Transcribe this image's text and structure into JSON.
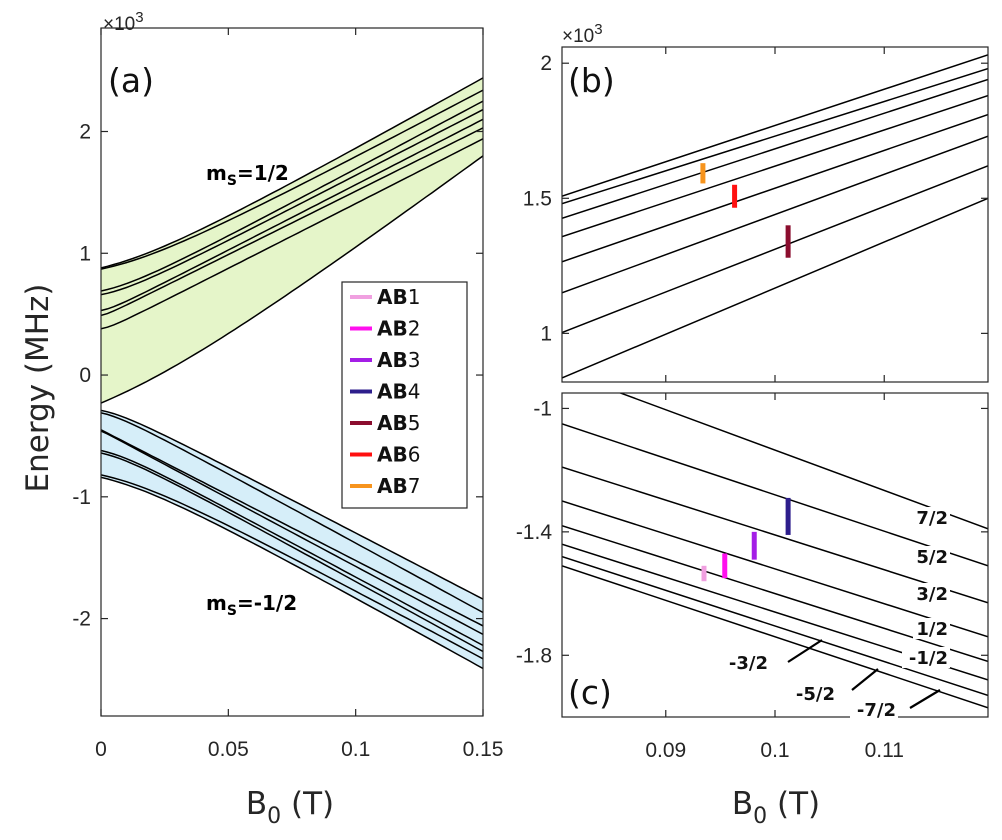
{
  "colors": {
    "upper_fill": "#e5f5c9",
    "lower_fill": "#d6eef9",
    "ms_up": "#7dc142",
    "ms_down": "#29aae1",
    "line": "#000000"
  },
  "ylabel": "Energy (MHz)",
  "xlabel_main": "B",
  "xlabel_sub": "0",
  "xlabel_unit": " (T)",
  "chart_data": [
    {
      "panel": "(a)",
      "type": "line",
      "exponent": "×10",
      "exponent_power": "3",
      "x_ticks": [
        "0",
        "0.05",
        "0.1",
        "0.15"
      ],
      "x_tick_values": [
        0,
        0.05,
        0.1,
        0.15
      ],
      "y_ticks": [
        "-2",
        "-1",
        "0",
        "1",
        "2"
      ],
      "y_tick_values": [
        -2000,
        -1000,
        0,
        1000,
        2000
      ],
      "xlim": [
        0,
        0.15
      ],
      "ylim": [
        -2800,
        2850
      ],
      "x": [
        0,
        0.15
      ],
      "series": [
        {
          "branch": "upper",
          "values": [
            880,
            2440
          ]
        },
        {
          "branch": "upper",
          "values": [
            870,
            2340
          ]
        },
        {
          "branch": "upper",
          "values": [
            690,
            2250
          ]
        },
        {
          "branch": "upper",
          "values": [
            660,
            2180
          ]
        },
        {
          "branch": "upper",
          "values": [
            530,
            2100
          ]
        },
        {
          "branch": "upper",
          "values": [
            490,
            2030
          ]
        },
        {
          "branch": "upper",
          "values": [
            380,
            1940
          ]
        },
        {
          "branch": "upper",
          "values": [
            -230,
            1800
          ]
        },
        {
          "branch": "lower",
          "values": [
            -290,
            -1840
          ]
        },
        {
          "branch": "lower",
          "values": [
            -310,
            -1950
          ]
        },
        {
          "branch": "lower",
          "values": [
            -450,
            -2060
          ]
        },
        {
          "branch": "lower",
          "values": [
            -460,
            -2130
          ]
        },
        {
          "branch": "lower",
          "values": [
            -620,
            -2220
          ]
        },
        {
          "branch": "lower",
          "values": [
            -640,
            -2270
          ]
        },
        {
          "branch": "lower",
          "values": [
            -820,
            -2330
          ]
        },
        {
          "branch": "lower",
          "values": [
            -840,
            -2410
          ]
        }
      ],
      "annotations": {
        "ms_up": {
          "m": "m",
          "sub": "S",
          "rest": "=1/2"
        },
        "ms_down": {
          "m": "m",
          "sub": "S",
          "rest": "=-1/2"
        }
      },
      "legend": [
        {
          "bold": "AB",
          "num": "1",
          "color": "#f0a0e0"
        },
        {
          "bold": "AB",
          "num": "2",
          "color": "#ff10ee"
        },
        {
          "bold": "AB",
          "num": "3",
          "color": "#a41ee6"
        },
        {
          "bold": "AB",
          "num": "4",
          "color": "#2d1e8c"
        },
        {
          "bold": "AB",
          "num": "5",
          "color": "#8b0d2e"
        },
        {
          "bold": "AB",
          "num": "6",
          "color": "#ff1010"
        },
        {
          "bold": "AB",
          "num": "7",
          "color": "#f7941d"
        }
      ]
    },
    {
      "panel": "(b)",
      "type": "line",
      "exponent": "×10",
      "exponent_power": "3",
      "y_ticks": [
        "1",
        "1.5",
        "2"
      ],
      "y_tick_values": [
        1000,
        1500,
        2000
      ],
      "x_tick_values": [
        0.09,
        0.1,
        0.11
      ],
      "xlim": [
        0.0805,
        0.1195
      ],
      "ylim": [
        820,
        2060
      ],
      "x": [
        0.0805,
        0.1195
      ],
      "series": [
        {
          "values": [
            1508,
            2031
          ]
        },
        {
          "values": [
            1480,
            1980
          ]
        },
        {
          "values": [
            1426,
            1940
          ]
        },
        {
          "values": [
            1358,
            1880
          ]
        },
        {
          "values": [
            1265,
            1810
          ]
        },
        {
          "values": [
            1150,
            1730
          ]
        },
        {
          "values": [
            1003,
            1620
          ]
        },
        {
          "values": [
            835,
            1500
          ]
        }
      ],
      "transitions": [
        {
          "name": "AB7",
          "x": 0.0934,
          "y_range": [
            1555,
            1630
          ],
          "color": "#f7941d"
        },
        {
          "name": "AB6",
          "x": 0.0963,
          "y_range": [
            1465,
            1550
          ],
          "color": "#ff1010"
        },
        {
          "name": "AB5",
          "x": 0.1012,
          "y_range": [
            1280,
            1400
          ],
          "color": "#8b0d2e"
        }
      ]
    },
    {
      "panel": "(c)",
      "type": "line",
      "x_ticks": [
        "0.09",
        "0.1",
        "0.11"
      ],
      "x_tick_values": [
        0.09,
        0.1,
        0.11
      ],
      "y_ticks": [
        "-1",
        "-1.4",
        "-1.8"
      ],
      "y_tick_values": [
        -1000,
        -1400,
        -1800
      ],
      "xlim": [
        0.0805,
        0.1195
      ],
      "ylim": [
        -2000,
        -950
      ],
      "x": [
        0.0805,
        0.1195
      ],
      "series": [
        {
          "label": "7/2",
          "values": [
            -880,
            -1390
          ]
        },
        {
          "label": "5/2",
          "values": [
            -1050,
            -1510
          ]
        },
        {
          "label": "3/2",
          "values": [
            -1190,
            -1630
          ]
        },
        {
          "label": "1/2",
          "values": [
            -1300,
            -1740
          ]
        },
        {
          "label": "-1/2",
          "values": [
            -1380,
            -1820
          ]
        },
        {
          "label": "-3/2",
          "values": [
            -1440,
            -1880
          ]
        },
        {
          "label": "-5/2",
          "values": [
            -1480,
            -1930
          ]
        },
        {
          "label": "-7/2",
          "values": [
            -1510,
            -1970
          ]
        }
      ],
      "transitions": [
        {
          "name": "AB1",
          "x": 0.0935,
          "y_range": [
            -1560,
            -1510
          ],
          "color": "#f0a0e0"
        },
        {
          "name": "AB2",
          "x": 0.0954,
          "y_range": [
            -1550,
            -1470
          ],
          "color": "#ff10ee"
        },
        {
          "name": "AB3",
          "x": 0.0981,
          "y_range": [
            -1490,
            -1400
          ],
          "color": "#a41ee6"
        },
        {
          "name": "AB4",
          "x": 0.1012,
          "y_range": [
            -1410,
            -1290
          ],
          "color": "#2d1e8c"
        }
      ]
    }
  ]
}
